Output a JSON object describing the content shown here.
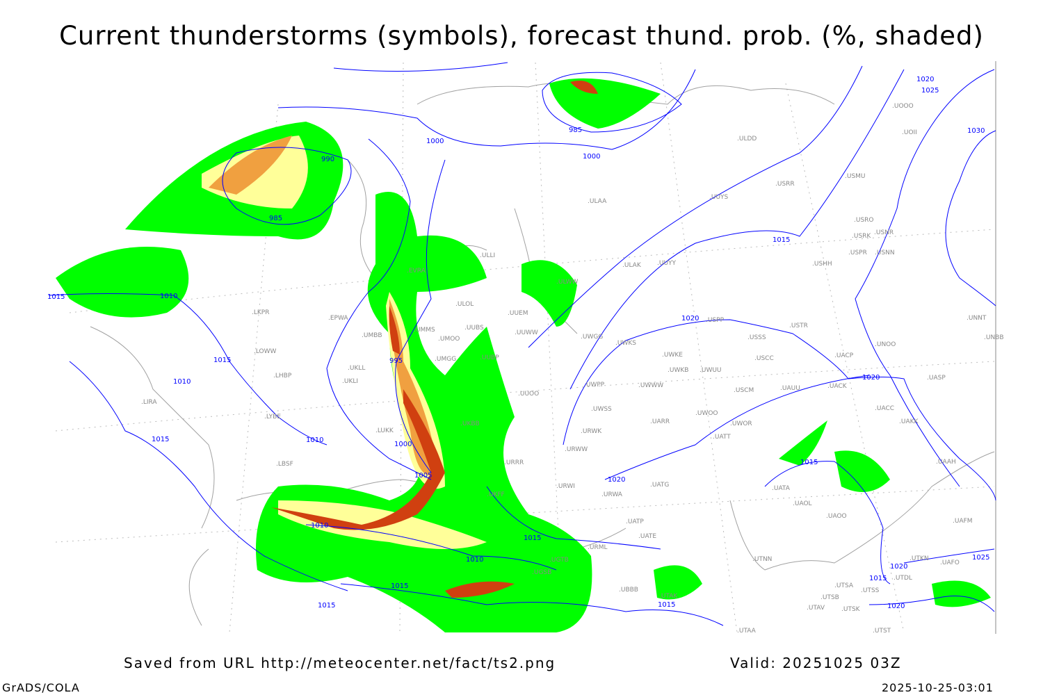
{
  "title": "Current thunderstorms (symbols), forecast thund. prob. (%, shaded)",
  "footer": {
    "source": "Saved from URL http://meteocenter.net/fact/ts2.png",
    "valid": "Valid: 20251025 03Z",
    "software": "GrADS/COLA",
    "timestamp": "2025-10-25-03:01"
  },
  "colors": {
    "isobar": "#0000ff",
    "coast": "#a0a0a0",
    "prob_low": "#00ff00",
    "prob_mid": "#ffff99",
    "prob_high": "#f0a040",
    "prob_max": "#d04010"
  },
  "stations": [
    "ULDD",
    "USRR",
    "USMU",
    "UUYS",
    "ULAA",
    "USRO",
    "USRK",
    "USNR",
    "USPR",
    "USNN",
    "USHH",
    "UUYY",
    "ULAK",
    "UOOO",
    "UOII",
    "ULWW",
    "ULOL",
    "UUEM",
    "UUWW",
    "UWGG",
    "UWKS",
    "UWKE",
    "UWKB",
    "UWUU",
    "USSS",
    "USCC",
    "USTR",
    "USPP",
    "UNOO",
    "UACP",
    "UACK",
    "UASP",
    "UNNT",
    "UNBB",
    "UWPP",
    "UWWW",
    "USCM",
    "UAUU",
    "UACC",
    "UAKK",
    "UWSS",
    "UARR",
    "UWOO",
    "UWOR",
    "UATT",
    "URWK",
    "URWW",
    "UUOO",
    "UUBP",
    "UMMS",
    "UMOO",
    "UUBS",
    "UMBB",
    "UMGG",
    "EVRA",
    "UKLL",
    "UKLI",
    "LKPR",
    "LOWW",
    "LHBP",
    "LIRA",
    "LYBE",
    "LBSF",
    "LUKK",
    "URRR",
    "URWI",
    "URWA",
    "UATG",
    "UATP",
    "UATE",
    "URML",
    "UTAK",
    "UBBB",
    "UGTB",
    "UGSB",
    "UTNN",
    "UATA",
    "UAOL",
    "UAOO",
    "UAAH",
    "UAFM",
    "UAFO",
    "UTKN",
    "UTDL",
    "UTSA",
    "UTSB",
    "UTSS",
    "UTAV",
    "UTSK",
    "UTAA",
    "UTST",
    "ULLI",
    "EPWA",
    "UKBB",
    "UKFF"
  ],
  "isobar_labels": [
    "1020",
    "1025",
    "1030",
    "985",
    "1000",
    "1000",
    "990",
    "985",
    "1015",
    "1010",
    "1015",
    "1010",
    "995",
    "1015",
    "1010",
    "1000",
    "1005",
    "1015",
    "1020",
    "1020",
    "1020",
    "1015",
    "1010",
    "1015",
    "1010",
    "1015",
    "1015",
    "1015",
    "1015",
    "1020",
    "1020",
    "1025"
  ]
}
